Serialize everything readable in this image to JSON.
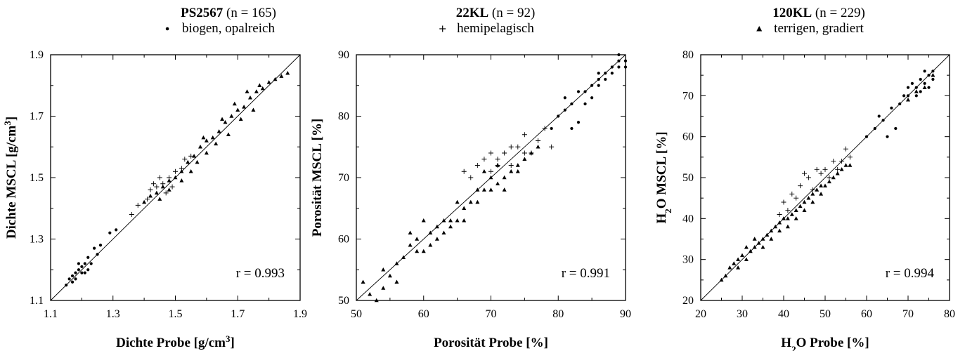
{
  "legend": [
    {
      "name": "PS2567",
      "n": "(n = 165)",
      "desc": "biogen, opalreich",
      "symbol": "dot"
    },
    {
      "name": "22KL",
      "n": "(n = 92)",
      "desc": "hemipelagisch",
      "symbol": "plus"
    },
    {
      "name": "120KL",
      "n": "(n = 229)",
      "desc": "terrigen, gradiert",
      "symbol": "triangle"
    }
  ],
  "chart_data": [
    {
      "type": "scatter",
      "xlabel": "Dichte Probe [g/cm³]",
      "ylabel": "Dichte MSCL [g/cm³]",
      "xlim": [
        1.1,
        1.9
      ],
      "ylim": [
        1.1,
        1.9
      ],
      "xticks": [
        "1.1",
        "1.3",
        "1.5",
        "1.7",
        "1.9"
      ],
      "yticks": [
        "1.1",
        "1.3",
        "1.5",
        "1.7",
        "1.9"
      ],
      "annotation": "r = 0.993",
      "series": [
        {
          "name": "PS2567",
          "marker": "dot",
          "points": [
            [
              1.15,
              1.15
            ],
            [
              1.16,
              1.17
            ],
            [
              1.17,
              1.18
            ],
            [
              1.18,
              1.17
            ],
            [
              1.19,
              1.2
            ],
            [
              1.2,
              1.21
            ],
            [
              1.21,
              1.22
            ],
            [
              1.22,
              1.24
            ],
            [
              1.23,
              1.22
            ],
            [
              1.18,
              1.19
            ],
            [
              1.2,
              1.19
            ],
            [
              1.24,
              1.27
            ],
            [
              1.26,
              1.28
            ],
            [
              1.25,
              1.25
            ],
            [
              1.29,
              1.32
            ],
            [
              1.31,
              1.33
            ],
            [
              1.22,
              1.2
            ],
            [
              1.17,
              1.16
            ],
            [
              1.19,
              1.22
            ],
            [
              1.21,
              1.19
            ]
          ]
        },
        {
          "name": "22KL",
          "marker": "plus",
          "points": [
            [
              1.42,
              1.46
            ],
            [
              1.44,
              1.47
            ],
            [
              1.46,
              1.48
            ],
            [
              1.48,
              1.5
            ],
            [
              1.5,
              1.52
            ],
            [
              1.52,
              1.53
            ],
            [
              1.45,
              1.5
            ],
            [
              1.47,
              1.45
            ],
            [
              1.41,
              1.43
            ],
            [
              1.53,
              1.56
            ],
            [
              1.55,
              1.57
            ],
            [
              1.43,
              1.48
            ],
            [
              1.49,
              1.47
            ],
            [
              1.38,
              1.41
            ],
            [
              1.36,
              1.38
            ]
          ]
        },
        {
          "name": "120KL",
          "marker": "triangle",
          "points": [
            [
              1.4,
              1.42
            ],
            [
              1.42,
              1.44
            ],
            [
              1.44,
              1.45
            ],
            [
              1.46,
              1.47
            ],
            [
              1.48,
              1.49
            ],
            [
              1.5,
              1.5
            ],
            [
              1.52,
              1.52
            ],
            [
              1.54,
              1.55
            ],
            [
              1.56,
              1.57
            ],
            [
              1.58,
              1.6
            ],
            [
              1.6,
              1.62
            ],
            [
              1.62,
              1.63
            ],
            [
              1.64,
              1.65
            ],
            [
              1.66,
              1.68
            ],
            [
              1.68,
              1.7
            ],
            [
              1.7,
              1.72
            ],
            [
              1.72,
              1.73
            ],
            [
              1.74,
              1.76
            ],
            [
              1.76,
              1.78
            ],
            [
              1.78,
              1.79
            ],
            [
              1.8,
              1.81
            ],
            [
              1.82,
              1.82
            ],
            [
              1.84,
              1.83
            ],
            [
              1.86,
              1.84
            ],
            [
              1.55,
              1.52
            ],
            [
              1.57,
              1.55
            ],
            [
              1.6,
              1.58
            ],
            [
              1.63,
              1.61
            ],
            [
              1.67,
              1.64
            ],
            [
              1.71,
              1.69
            ],
            [
              1.75,
              1.72
            ],
            [
              1.48,
              1.46
            ],
            [
              1.45,
              1.43
            ],
            [
              1.52,
              1.49
            ],
            [
              1.59,
              1.63
            ],
            [
              1.65,
              1.69
            ],
            [
              1.69,
              1.74
            ],
            [
              1.73,
              1.78
            ],
            [
              1.77,
              1.8
            ]
          ]
        }
      ]
    },
    {
      "type": "scatter",
      "xlabel": "Porosität Probe [%]",
      "ylabel": "Porosität MSCL [%]",
      "xlim": [
        50,
        90
      ],
      "ylim": [
        50,
        90
      ],
      "xticks": [
        "50",
        "60",
        "70",
        "80",
        "90"
      ],
      "yticks": [
        "50",
        "60",
        "70",
        "80",
        "90"
      ],
      "annotation": "r = 0.991",
      "series": [
        {
          "name": "PS2567",
          "marker": "dot",
          "points": [
            [
              80,
              80
            ],
            [
              81,
              81
            ],
            [
              82,
              82
            ],
            [
              83,
              84
            ],
            [
              84,
              84
            ],
            [
              85,
              85
            ],
            [
              86,
              86
            ],
            [
              87,
              87
            ],
            [
              88,
              88
            ],
            [
              89,
              89
            ],
            [
              90,
              89
            ],
            [
              87,
              86
            ],
            [
              89,
              88
            ],
            [
              86,
              87
            ],
            [
              84,
              82
            ],
            [
              82,
              78
            ],
            [
              83,
              79
            ],
            [
              85,
              83
            ],
            [
              88,
              87
            ],
            [
              90,
              88
            ],
            [
              79,
              78
            ],
            [
              81,
              83
            ],
            [
              89,
              90
            ],
            [
              86,
              85
            ]
          ]
        },
        {
          "name": "22KL",
          "marker": "plus",
          "points": [
            [
              68,
              72
            ],
            [
              69,
              73
            ],
            [
              70,
              74
            ],
            [
              71,
              73
            ],
            [
              72,
              74
            ],
            [
              73,
              75
            ],
            [
              74,
              75
            ],
            [
              75,
              74
            ],
            [
              76,
              74
            ],
            [
              77,
              76
            ],
            [
              78,
              78
            ],
            [
              79,
              75
            ],
            [
              67,
              70
            ],
            [
              66,
              71
            ],
            [
              71,
              72
            ],
            [
              73,
              72
            ],
            [
              75,
              77
            ],
            [
              70,
              71
            ]
          ]
        },
        {
          "name": "120KL",
          "marker": "triangle",
          "points": [
            [
              51,
              53
            ],
            [
              52,
              51
            ],
            [
              53,
              50
            ],
            [
              54,
              55
            ],
            [
              55,
              54
            ],
            [
              56,
              56
            ],
            [
              57,
              57
            ],
            [
              58,
              59
            ],
            [
              59,
              60
            ],
            [
              60,
              58
            ],
            [
              61,
              61
            ],
            [
              62,
              62
            ],
            [
              63,
              63
            ],
            [
              64,
              63
            ],
            [
              65,
              66
            ],
            [
              66,
              65
            ],
            [
              67,
              66
            ],
            [
              68,
              68
            ],
            [
              69,
              68
            ],
            [
              70,
              70
            ],
            [
              71,
              69
            ],
            [
              72,
              70
            ],
            [
              73,
              71
            ],
            [
              74,
              72
            ],
            [
              75,
              73
            ],
            [
              76,
              74
            ],
            [
              77,
              75
            ],
            [
              58,
              61
            ],
            [
              60,
              63
            ],
            [
              62,
              60
            ],
            [
              64,
              62
            ],
            [
              66,
              63
            ],
            [
              68,
              66
            ],
            [
              70,
              68
            ],
            [
              72,
              68
            ],
            [
              74,
              71
            ],
            [
              65,
              63
            ],
            [
              63,
              61
            ],
            [
              61,
              59
            ],
            [
              59,
              58
            ],
            [
              56,
              53
            ],
            [
              54,
              52
            ],
            [
              69,
              71
            ],
            [
              71,
              72
            ]
          ]
        }
      ]
    },
    {
      "type": "scatter",
      "xlabel": "H₂O Probe [%]",
      "ylabel": "H₂O MSCL [%]",
      "xlim": [
        20,
        80
      ],
      "ylim": [
        20,
        80
      ],
      "xticks": [
        "20",
        "30",
        "40",
        "50",
        "60",
        "70",
        "80"
      ],
      "yticks": [
        "20",
        "30",
        "40",
        "50",
        "60",
        "70",
        "80"
      ],
      "annotation": "r = 0.994",
      "series": [
        {
          "name": "PS2567",
          "marker": "dot",
          "points": [
            [
              60,
              60
            ],
            [
              62,
              62
            ],
            [
              64,
              64
            ],
            [
              66,
              67
            ],
            [
              68,
              68
            ],
            [
              70,
              70
            ],
            [
              72,
              72
            ],
            [
              73,
              74
            ],
            [
              74,
              73
            ],
            [
              75,
              75
            ],
            [
              76,
              76
            ],
            [
              71,
              73
            ],
            [
              69,
              70
            ],
            [
              73,
              71
            ],
            [
              75,
              72
            ],
            [
              74,
              76
            ],
            [
              72,
              70
            ],
            [
              70,
              72
            ],
            [
              67,
              62
            ],
            [
              65,
              60
            ],
            [
              63,
              65
            ],
            [
              76,
              74
            ]
          ]
        },
        {
          "name": "22KL",
          "marker": "plus",
          "points": [
            [
              40,
              44
            ],
            [
              42,
              46
            ],
            [
              44,
              48
            ],
            [
              46,
              50
            ],
            [
              48,
              52
            ],
            [
              50,
              52
            ],
            [
              52,
              54
            ],
            [
              54,
              54
            ],
            [
              56,
              55
            ],
            [
              45,
              51
            ],
            [
              47,
              47
            ],
            [
              49,
              51
            ],
            [
              43,
              45
            ],
            [
              51,
              50
            ],
            [
              53,
              52
            ],
            [
              55,
              57
            ],
            [
              41,
              42
            ],
            [
              39,
              41
            ]
          ]
        },
        {
          "name": "120KL",
          "marker": "triangle",
          "points": [
            [
              25,
              25
            ],
            [
              26,
              26
            ],
            [
              27,
              28
            ],
            [
              28,
              29
            ],
            [
              29,
              30
            ],
            [
              30,
              31
            ],
            [
              31,
              30
            ],
            [
              32,
              32
            ],
            [
              33,
              33
            ],
            [
              34,
              34
            ],
            [
              35,
              35
            ],
            [
              36,
              36
            ],
            [
              37,
              37
            ],
            [
              38,
              38
            ],
            [
              39,
              39
            ],
            [
              40,
              40
            ],
            [
              41,
              40
            ],
            [
              42,
              41
            ],
            [
              43,
              42
            ],
            [
              44,
              43
            ],
            [
              45,
              44
            ],
            [
              46,
              45
            ],
            [
              47,
              46
            ],
            [
              48,
              47
            ],
            [
              49,
              48
            ],
            [
              50,
              48
            ],
            [
              51,
              49
            ],
            [
              52,
              50
            ],
            [
              53,
              51
            ],
            [
              54,
              52
            ],
            [
              55,
              53
            ],
            [
              56,
              53
            ],
            [
              35,
              33
            ],
            [
              37,
              35
            ],
            [
              39,
              37
            ],
            [
              41,
              38
            ],
            [
              43,
              40
            ],
            [
              45,
              42
            ],
            [
              47,
              44
            ],
            [
              49,
              46
            ],
            [
              33,
              35
            ],
            [
              31,
              33
            ],
            [
              29,
              28
            ],
            [
              70,
              69
            ],
            [
              72,
              71
            ],
            [
              74,
              72
            ],
            [
              76,
              75
            ]
          ]
        }
      ]
    }
  ]
}
